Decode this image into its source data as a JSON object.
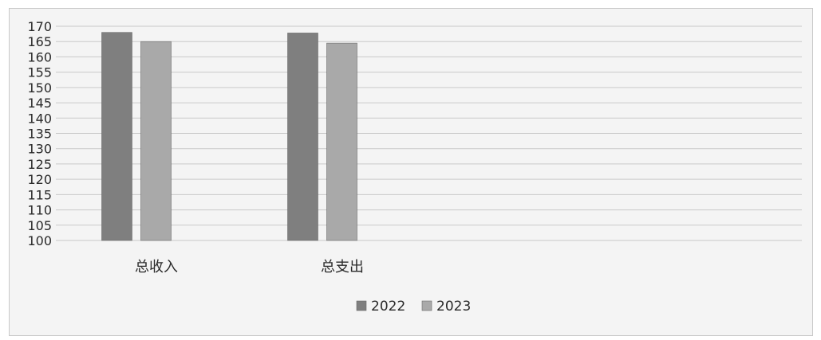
{
  "chart_data": {
    "type": "bar",
    "title": "",
    "xlabel": "",
    "ylabel": "",
    "categories": [
      "总收入",
      "总支出"
    ],
    "series": [
      {
        "name": "2022",
        "values": [
          168,
          167.8
        ],
        "color": "#7f7f7f"
      },
      {
        "name": "2023",
        "values": [
          165,
          164.5
        ],
        "color": "#a9a9a9"
      }
    ],
    "ylim": [
      100,
      170
    ],
    "yticks": [
      100,
      105,
      110,
      115,
      120,
      125,
      130,
      135,
      140,
      145,
      150,
      155,
      160,
      165,
      170
    ],
    "grid": true,
    "legend": "bottom-center"
  }
}
